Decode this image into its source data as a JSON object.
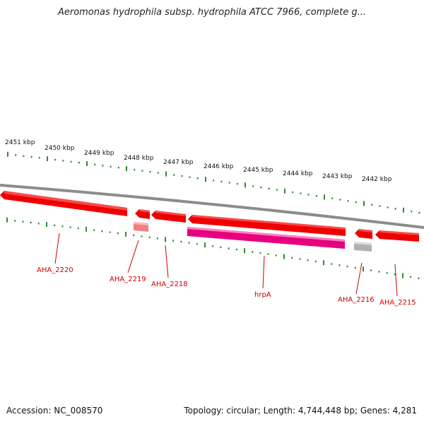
{
  "title": "Aeromonas hydrophila subsp. hydrophila ATCC 7966, complete g...",
  "footer": {
    "accession": "Accession: NC_008570",
    "topology": "Topology: circular; Length: 4,744,448 bp; Genes: 4,281"
  },
  "colors": {
    "backbone": "#8c8c8c",
    "tick": "#2e8b2e",
    "gene": "#ee0000",
    "gene_light": "#ff6a6a",
    "rna": "#e6007e",
    "pseudo": "#b0b0b0",
    "label": "#cc0000"
  },
  "ruler": {
    "unit": "kbp",
    "labels": [
      "2451 kbp",
      "2450 kbp",
      "2449 kbp",
      "2448 kbp",
      "2447 kbp",
      "2446 kbp",
      "2445 kbp",
      "2444 kbp",
      "2443 kbp",
      "2442 kbp"
    ]
  },
  "genes": [
    {
      "name": "AHA_2220",
      "strand": "forward",
      "type": "CDS"
    },
    {
      "name": "AHA_2219",
      "strand": "forward",
      "type": "CDS"
    },
    {
      "name": "AHA_2218",
      "strand": "forward",
      "type": "CDS"
    },
    {
      "name": "hrpA",
      "strand": "forward",
      "type": "CDS"
    },
    {
      "name": "AHA_2216",
      "strand": "forward",
      "type": "CDS"
    },
    {
      "name": "AHA_2215",
      "strand": "forward",
      "type": "CDS"
    }
  ]
}
